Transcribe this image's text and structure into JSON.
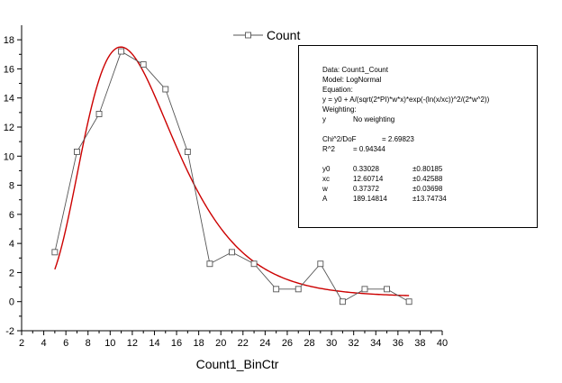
{
  "chart_data": {
    "type": "scatter",
    "xlabel": "Count1_BinCtr",
    "ylabel": "",
    "xlim": [
      2,
      40
    ],
    "ylim": [
      -2,
      19
    ],
    "x_ticks": [
      2,
      4,
      6,
      8,
      10,
      12,
      14,
      16,
      18,
      20,
      22,
      24,
      26,
      28,
      30,
      32,
      34,
      36,
      38,
      40
    ],
    "y_ticks": [
      -2,
      0,
      2,
      4,
      6,
      8,
      10,
      12,
      14,
      16,
      18
    ],
    "grid": false,
    "legend": "top-center",
    "series": [
      {
        "name": "Count",
        "style": "line+square-markers",
        "color": "#555555",
        "x": [
          5,
          7,
          9,
          11,
          13,
          15,
          17,
          19,
          21,
          23,
          25,
          27,
          29,
          31,
          33,
          35,
          37
        ],
        "values": [
          3.4,
          10.3,
          12.9,
          17.2,
          16.3,
          14.6,
          10.3,
          2.6,
          3.4,
          2.6,
          0.86,
          0.86,
          2.6,
          0,
          0.86,
          0.86,
          0
        ]
      }
    ],
    "fit": {
      "model": "LogNormal",
      "color": "#cc0000",
      "x_range": [
        5,
        37
      ],
      "params": {
        "y0": 0.33028,
        "xc": 12.60714,
        "w": 0.37372,
        "A": 189.14814
      }
    }
  },
  "fit_report": {
    "data_line": "Data: Count1_Count",
    "model_line": "Model: LogNormal",
    "equation_label": "Equation:",
    "equation": "y = y0 + A/(sqrt(2*PI)*w*x)*exp(-(ln(x/xc))^2/(2*w^2))",
    "weighting_label": "Weighting:",
    "weighting_key": "y",
    "weighting_value": "No weighting",
    "chi_label": "Chi^2/DoF",
    "chi_value": "= 2.69823",
    "r2_label": "R^2",
    "r2_value": "=  0.94344",
    "params": [
      {
        "name": "y0",
        "value": "0.33028",
        "error": "±0.80185"
      },
      {
        "name": "xc",
        "value": "12.60714",
        "error": "±0.42588"
      },
      {
        "name": "w",
        "value": "0.37372",
        "error": "±0.03698"
      },
      {
        "name": "A",
        "value": "189.14814",
        "error": "±13.74734"
      }
    ]
  }
}
